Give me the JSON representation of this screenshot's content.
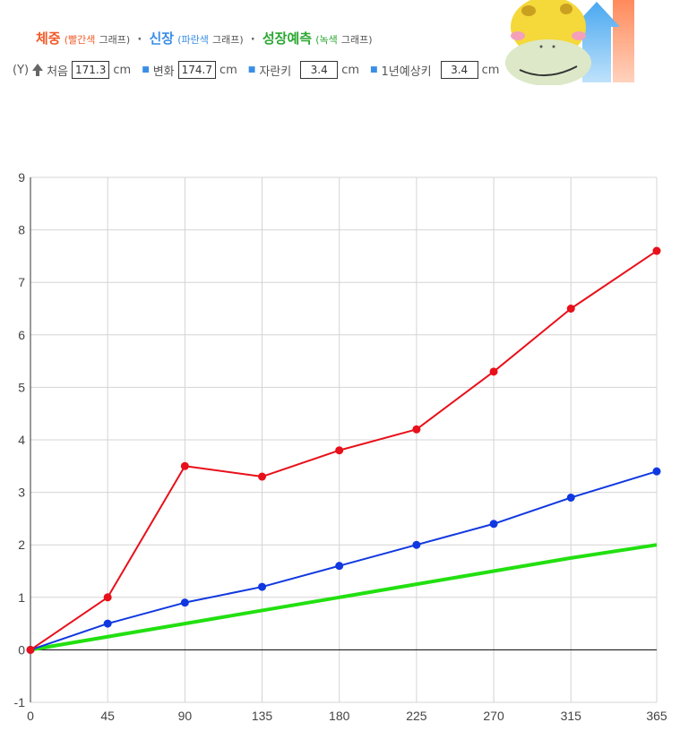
{
  "header": {
    "legend": {
      "weight": "체중",
      "weight_color_note": "(빨간색",
      "height": "신장",
      "height_color_note": "(파란색",
      "prediction": "성장예측",
      "prediction_color_note": "(녹색",
      "graph_word": "그래프)",
      "separator": "·"
    },
    "info": {
      "axis_tag": "(Y)",
      "start_label": "처음",
      "start_value": "171.3",
      "change_label": "변화",
      "change_value": "174.7",
      "growth_label": "자란키",
      "growth_value": "3.4",
      "year_label": "1년예상키",
      "year_value": "3.4",
      "unit": "cm"
    }
  },
  "colors": {
    "weight": "#e8101a",
    "height": "#1038e0",
    "prediction": "#22e010",
    "weight_legend": "#f05a28",
    "height_legend": "#3a8ee6",
    "prediction_legend": "#2aa830"
  },
  "chart_data": {
    "type": "line",
    "x": [
      0,
      45,
      90,
      135,
      180,
      225,
      270,
      315,
      365
    ],
    "series": [
      {
        "name": "체중",
        "values": [
          0,
          1,
          3.5,
          3.3,
          3.8,
          4.2,
          5.3,
          6.5,
          7.6
        ],
        "markers": true
      },
      {
        "name": "신장",
        "values": [
          0,
          0.5,
          0.9,
          1.2,
          1.6,
          2.0,
          2.4,
          2.9,
          3.4
        ],
        "markers": true
      },
      {
        "name": "성장예측",
        "values": [
          0,
          0.25,
          0.5,
          0.75,
          1.0,
          1.25,
          1.5,
          1.75,
          2.0
        ],
        "markers": false
      }
    ],
    "xticks": [
      "0",
      "45",
      "90",
      "135",
      "180",
      "225",
      "270",
      "315",
      "365"
    ],
    "yticks": [
      "-1",
      "0",
      "1",
      "2",
      "3",
      "4",
      "5",
      "6",
      "7",
      "8",
      "9"
    ],
    "ylim": [
      -1,
      9
    ],
    "xlim": [
      0,
      365
    ],
    "grid": true
  }
}
